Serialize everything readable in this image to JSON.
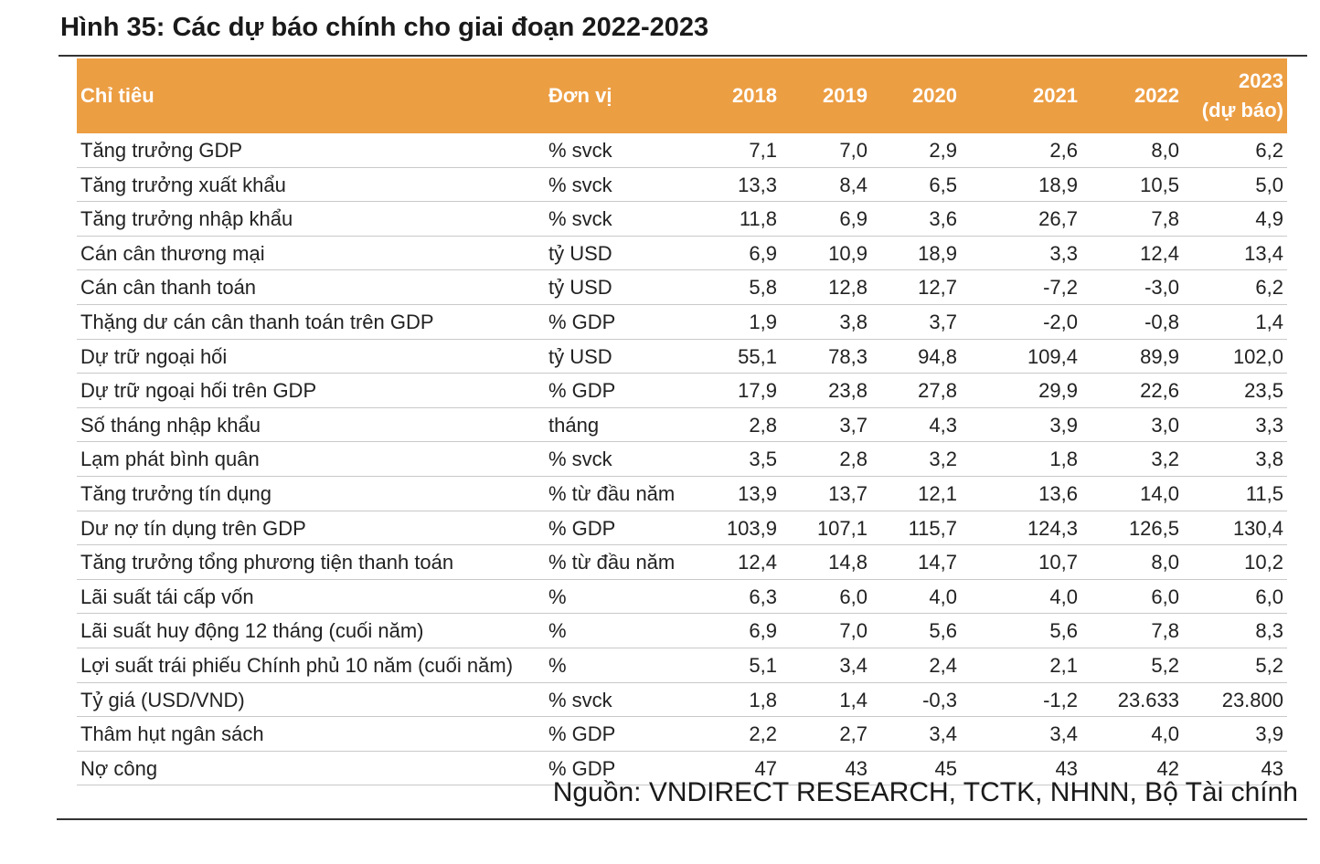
{
  "title": "Hình 35: Các dự báo chính cho giai đoạn 2022-2023",
  "header": {
    "indicator": "Chỉ tiêu",
    "unit": "Đơn vị",
    "y2018": "2018",
    "y2019": "2019",
    "y2020": "2020",
    "y2021": "2021",
    "y2022": "2022",
    "y2023_line1": "2023",
    "y2023_line2": "(dự báo)"
  },
  "rows": [
    {
      "name": "Tăng trưởng GDP",
      "unit": "% svck",
      "y2018": "7,1",
      "y2019": "7,0",
      "y2020": "2,9",
      "y2021": "2,6",
      "y2022": "8,0",
      "y2023": "6,2"
    },
    {
      "name": "Tăng trưởng xuất khẩu",
      "unit": "% svck",
      "y2018": "13,3",
      "y2019": "8,4",
      "y2020": "6,5",
      "y2021": "18,9",
      "y2022": "10,5",
      "y2023": "5,0"
    },
    {
      "name": "Tăng trưởng nhập khẩu",
      "unit": "% svck",
      "y2018": "11,8",
      "y2019": "6,9",
      "y2020": "3,6",
      "y2021": "26,7",
      "y2022": "7,8",
      "y2023": "4,9"
    },
    {
      "name": "Cán cân thương mại",
      "unit": "tỷ USD",
      "y2018": "6,9",
      "y2019": "10,9",
      "y2020": "18,9",
      "y2021": "3,3",
      "y2022": "12,4",
      "y2023": "13,4"
    },
    {
      "name": "Cán cân thanh toán",
      "unit": "tỷ USD",
      "y2018": "5,8",
      "y2019": "12,8",
      "y2020": "12,7",
      "y2021": "-7,2",
      "y2022": "-3,0",
      "y2023": "6,2"
    },
    {
      "name": "Thặng dư cán cân thanh toán trên GDP",
      "unit": "% GDP",
      "y2018": "1,9",
      "y2019": "3,8",
      "y2020": "3,7",
      "y2021": "-2,0",
      "y2022": "-0,8",
      "y2023": "1,4"
    },
    {
      "name": "Dự trữ ngoại hối",
      "unit": "tỷ USD",
      "y2018": "55,1",
      "y2019": "78,3",
      "y2020": "94,8",
      "y2021": "109,4",
      "y2022": "89,9",
      "y2023": "102,0"
    },
    {
      "name": "Dự trữ ngoại hối trên GDP",
      "unit": "% GDP",
      "y2018": "17,9",
      "y2019": "23,8",
      "y2020": "27,8",
      "y2021": "29,9",
      "y2022": "22,6",
      "y2023": "23,5"
    },
    {
      "name": "Số tháng nhập khẩu",
      "unit": "tháng",
      "y2018": "2,8",
      "y2019": "3,7",
      "y2020": "4,3",
      "y2021": "3,9",
      "y2022": "3,0",
      "y2023": "3,3"
    },
    {
      "name": "Lạm phát bình quân",
      "unit": "% svck",
      "y2018": "3,5",
      "y2019": "2,8",
      "y2020": "3,2",
      "y2021": "1,8",
      "y2022": "3,2",
      "y2023": "3,8"
    },
    {
      "name": "Tăng trưởng tín dụng",
      "unit": "% từ đầu năm",
      "y2018": "13,9",
      "y2019": "13,7",
      "y2020": "12,1",
      "y2021": "13,6",
      "y2022": "14,0",
      "y2023": "11,5"
    },
    {
      "name": "Dư nợ tín dụng trên GDP",
      "unit": "% GDP",
      "y2018": "103,9",
      "y2019": "107,1",
      "y2020": "115,7",
      "y2021": "124,3",
      "y2022": "126,5",
      "y2023": "130,4"
    },
    {
      "name": "Tăng trưởng tổng phương tiện thanh toán",
      "unit": "% từ đầu năm",
      "y2018": "12,4",
      "y2019": "14,8",
      "y2020": "14,7",
      "y2021": "10,7",
      "y2022": "8,0",
      "y2023": "10,2"
    },
    {
      "name": "Lãi suất tái cấp vốn",
      "unit": "%",
      "y2018": "6,3",
      "y2019": "6,0",
      "y2020": "4,0",
      "y2021": "4,0",
      "y2022": "6,0",
      "y2023": "6,0"
    },
    {
      "name": "Lãi suất huy động 12 tháng (cuối năm)",
      "unit": "%",
      "y2018": "6,9",
      "y2019": "7,0",
      "y2020": "5,6",
      "y2021": "5,6",
      "y2022": "7,8",
      "y2023": "8,3"
    },
    {
      "name": "Lợi suất trái phiếu Chính phủ 10 năm (cuối năm)",
      "unit": "%",
      "y2018": "5,1",
      "y2019": "3,4",
      "y2020": "2,4",
      "y2021": "2,1",
      "y2022": "5,2",
      "y2023": "5,2"
    },
    {
      "name": "Tỷ giá (USD/VND)",
      "unit": "% svck",
      "y2018": "1,8",
      "y2019": "1,4",
      "y2020": "-0,3",
      "y2021": "-1,2",
      "y2022": "23.633",
      "y2023": "23.800"
    },
    {
      "name": "Thâm hụt ngân sách",
      "unit": "% GDP",
      "y2018": "2,2",
      "y2019": "2,7",
      "y2020": "3,4",
      "y2021": "3,4",
      "y2022": "4,0",
      "y2023": "3,9"
    },
    {
      "name": "Nợ công",
      "unit": "% GDP",
      "y2018": "47",
      "y2019": "43",
      "y2020": "45",
      "y2021": "43",
      "y2022": "42",
      "y2023": "43"
    }
  ],
  "source": "Nguồn: VNDIRECT RESEARCH, TCTK, NHNN, Bộ Tài chính",
  "colors": {
    "header_bg": "#ec9e43",
    "header_text": "#ffffff"
  }
}
